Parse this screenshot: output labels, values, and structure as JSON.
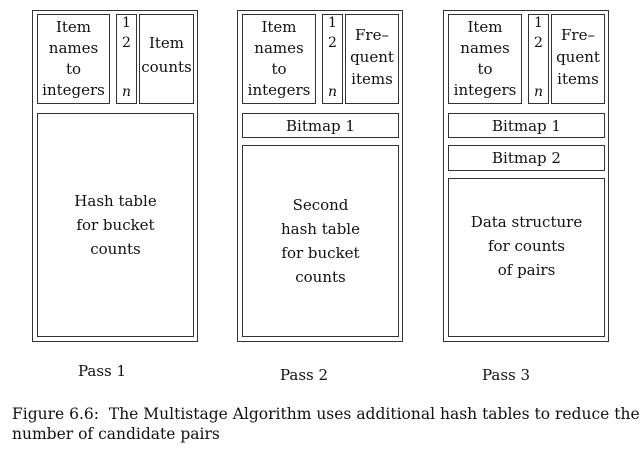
{
  "columns": [
    {
      "top": {
        "item_names": "Item\nnames\nto\nintegers",
        "index_1": "1",
        "index_2": "2",
        "index_n": "n",
        "right": "Item\ncounts"
      },
      "bitmaps": [],
      "main": "Hash table\nfor bucket\ncounts",
      "pass": "Pass 1"
    },
    {
      "top": {
        "item_names": "Item\nnames\nto\nintegers",
        "index_1": "1",
        "index_2": "2",
        "index_n": "n",
        "right": "Fre–\nquent\nitems"
      },
      "bitmaps": [
        "Bitmap 1"
      ],
      "main": "Second\nhash table\nfor bucket\ncounts",
      "pass": "Pass 2"
    },
    {
      "top": {
        "item_names": "Item\nnames\nto\nintegers",
        "index_1": "1",
        "index_2": "2",
        "index_n": "n",
        "right": "Fre–\nquent\nitems"
      },
      "bitmaps": [
        "Bitmap 1",
        "Bitmap 2"
      ],
      "main": "Data structure\nfor counts\nof pairs",
      "pass": "Pass 3"
    }
  ],
  "caption": "Figure 6.6:  The Multistage Algorithm uses additional hash tables to reduce the\nnumber of candidate pairs"
}
